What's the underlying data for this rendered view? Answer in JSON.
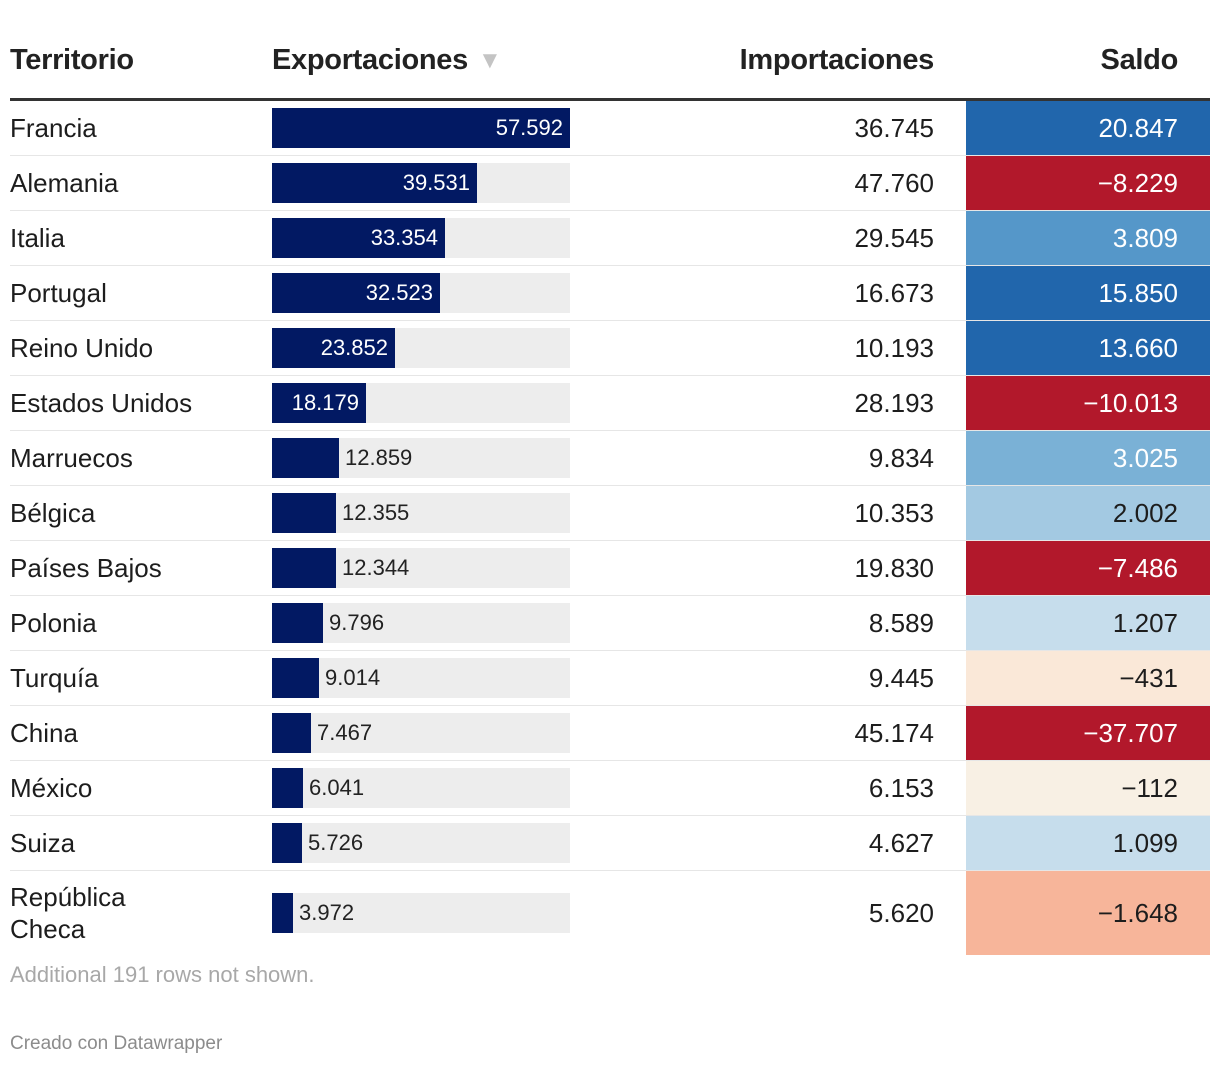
{
  "header": {
    "territorio": "Territorio",
    "exportaciones": "Exportaciones",
    "importaciones": "Importaciones",
    "saldo": "Saldo",
    "sort_icon": "sort-descending-icon"
  },
  "colors": {
    "bar": "#021963",
    "bar_track": "#ededed",
    "saldo_scale": {
      "strong_positive": "#2166ac",
      "medium_positive": "#5597c9",
      "light_positive": "#7ab1d6",
      "pale_positive": "#a3c9e2",
      "faint_positive": "#c6ddec",
      "strong_negative": "#b2182b",
      "salmon_negative": "#f7b59a",
      "cream_negative": "#fae8d8",
      "faint_negative": "#f8f0e4"
    }
  },
  "chart_data": {
    "type": "table",
    "columns": [
      "Territorio",
      "Exportaciones",
      "Importaciones",
      "Saldo"
    ],
    "bar_max": 57592,
    "rows": [
      {
        "territorio": "Francia",
        "exportaciones": 57592,
        "exportaciones_label": "57.592",
        "importaciones": "36.745",
        "saldo": "20.847",
        "saldo_color": "#2166ac",
        "saldo_text": "#ffffff"
      },
      {
        "territorio": "Alemania",
        "exportaciones": 39531,
        "exportaciones_label": "39.531",
        "importaciones": "47.760",
        "saldo": "−8.229",
        "saldo_color": "#b2182b",
        "saldo_text": "#ffffff"
      },
      {
        "territorio": "Italia",
        "exportaciones": 33354,
        "exportaciones_label": "33.354",
        "importaciones": "29.545",
        "saldo": "3.809",
        "saldo_color": "#5597c9",
        "saldo_text": "#ffffff"
      },
      {
        "territorio": "Portugal",
        "exportaciones": 32523,
        "exportaciones_label": "32.523",
        "importaciones": "16.673",
        "saldo": "15.850",
        "saldo_color": "#2166ac",
        "saldo_text": "#ffffff"
      },
      {
        "territorio": "Reino Unido",
        "exportaciones": 23852,
        "exportaciones_label": "23.852",
        "importaciones": "10.193",
        "saldo": "13.660",
        "saldo_color": "#2166ac",
        "saldo_text": "#ffffff"
      },
      {
        "territorio": "Estados Unidos",
        "exportaciones": 18179,
        "exportaciones_label": "18.179",
        "importaciones": "28.193",
        "saldo": "−10.013",
        "saldo_color": "#b2182b",
        "saldo_text": "#ffffff"
      },
      {
        "territorio": "Marruecos",
        "exportaciones": 12859,
        "exportaciones_label": "12.859",
        "importaciones": "9.834",
        "saldo": "3.025",
        "saldo_color": "#7ab1d6",
        "saldo_text": "#ffffff"
      },
      {
        "territorio": "Bélgica",
        "exportaciones": 12355,
        "exportaciones_label": "12.355",
        "importaciones": "10.353",
        "saldo": "2.002",
        "saldo_color": "#a3c9e2",
        "saldo_text": "#1d1d1d"
      },
      {
        "territorio": "Países Bajos",
        "exportaciones": 12344,
        "exportaciones_label": "12.344",
        "importaciones": "19.830",
        "saldo": "−7.486",
        "saldo_color": "#b2182b",
        "saldo_text": "#ffffff"
      },
      {
        "territorio": "Polonia",
        "exportaciones": 9796,
        "exportaciones_label": "9.796",
        "importaciones": "8.589",
        "saldo": "1.207",
        "saldo_color": "#c6ddec",
        "saldo_text": "#1d1d1d"
      },
      {
        "territorio": "Turquía",
        "exportaciones": 9014,
        "exportaciones_label": "9.014",
        "importaciones": "9.445",
        "saldo": "−431",
        "saldo_color": "#fae8d8",
        "saldo_text": "#1d1d1d"
      },
      {
        "territorio": "China",
        "exportaciones": 7467,
        "exportaciones_label": "7.467",
        "importaciones": "45.174",
        "saldo": "−37.707",
        "saldo_color": "#b2182b",
        "saldo_text": "#ffffff"
      },
      {
        "territorio": "México",
        "exportaciones": 6041,
        "exportaciones_label": "6.041",
        "importaciones": "6.153",
        "saldo": "−112",
        "saldo_color": "#f8f0e4",
        "saldo_text": "#1d1d1d"
      },
      {
        "territorio": "Suiza",
        "exportaciones": 5726,
        "exportaciones_label": "5.726",
        "importaciones": "4.627",
        "saldo": "1.099",
        "saldo_color": "#c6ddec",
        "saldo_text": "#1d1d1d"
      },
      {
        "territorio": "República Checa",
        "territorio_lines": [
          "República",
          "Checa"
        ],
        "exportaciones": 3972,
        "exportaciones_label": "3.972",
        "importaciones": "5.620",
        "saldo": "−1.648",
        "saldo_color": "#f7b59a",
        "saldo_text": "#1d1d1d"
      }
    ]
  },
  "footer": {
    "note": "Additional 191 rows not shown.",
    "credit": "Creado con Datawrapper"
  }
}
